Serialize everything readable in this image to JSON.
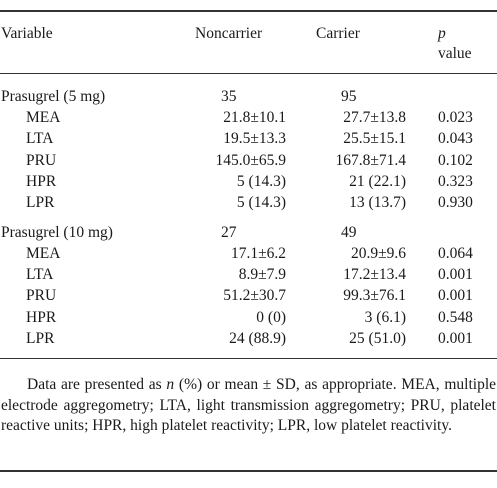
{
  "header": {
    "variable": "Variable",
    "noncarrier": "Noncarrier",
    "carrier": "Carrier",
    "p_italic": "p",
    "p_value": "value"
  },
  "groups": [
    {
      "label": "Prasugrel (5 mg)",
      "noncarrier_n": "35",
      "carrier_n": "95",
      "rows": [
        {
          "name": "MEA",
          "noncarrier": "21.8±10.1",
          "carrier": "27.7±13.8",
          "p": "0.023"
        },
        {
          "name": "LTA",
          "noncarrier": "19.5±13.3",
          "carrier": "25.5±15.1",
          "p": "0.043"
        },
        {
          "name": "PRU",
          "noncarrier": "145.0±65.9",
          "carrier": "167.8±71.4",
          "p": "0.102"
        },
        {
          "name": "HPR",
          "noncarrier": "5 (14.3)",
          "carrier": "21 (22.1)",
          "p": "0.323"
        },
        {
          "name": "LPR",
          "noncarrier": "5 (14.3)",
          "carrier": "13 (13.7)",
          "p": "0.930"
        }
      ]
    },
    {
      "label": "Prasugrel (10 mg)",
      "noncarrier_n": "27",
      "carrier_n": "49",
      "rows": [
        {
          "name": "MEA",
          "noncarrier": "17.1±6.2",
          "carrier": "20.9±9.6",
          "p": "0.064"
        },
        {
          "name": "LTA",
          "noncarrier": "8.9±7.9",
          "carrier": "17.2±13.4",
          "p": "0.001"
        },
        {
          "name": "PRU",
          "noncarrier": "51.2±30.7",
          "carrier": "99.3±76.1",
          "p": "0.001"
        },
        {
          "name": "HPR",
          "noncarrier": "0 (0)",
          "carrier": "3 (6.1)",
          "p": "0.548"
        },
        {
          "name": "LPR",
          "noncarrier": "24 (88.9)",
          "carrier": "25 (51.0)",
          "p": "0.001"
        }
      ]
    }
  ],
  "footnote": {
    "before_n": "Data are presented as ",
    "n_italic": "n",
    "after_n": " (%) or mean ± SD, as appropriate. MEA, multiple electrode aggregometry; LTA, light transmission aggregometry; PRU, platelet reactive units; HPR, high platelet reactivity; LPR, low platelet reactivity."
  }
}
